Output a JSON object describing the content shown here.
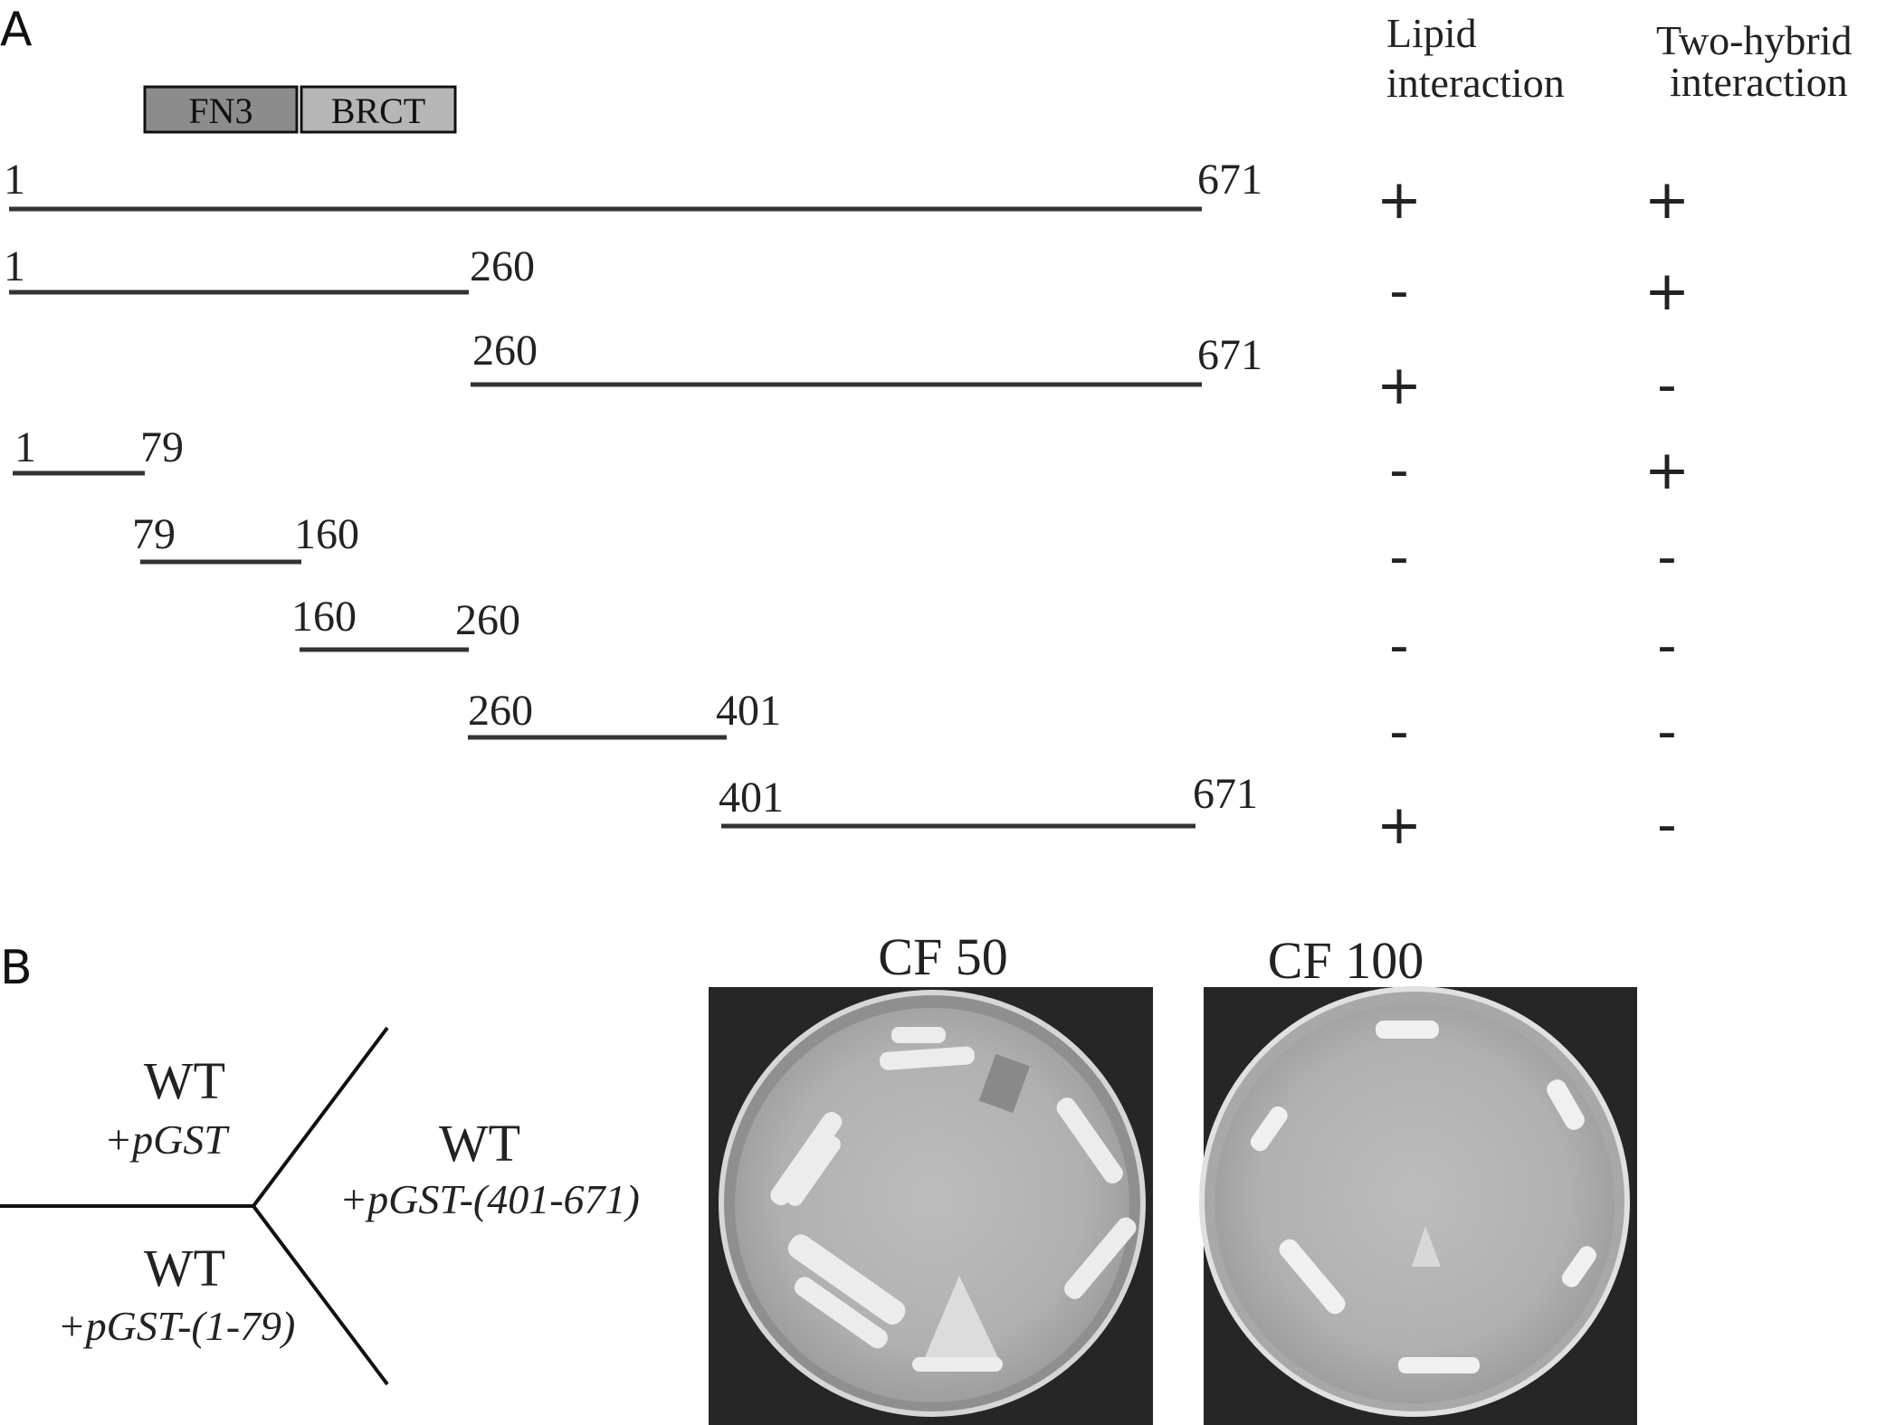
{
  "panel_a": {
    "label": "A",
    "domains": [
      {
        "name": "FN3",
        "fill": "#8c8c8c"
      },
      {
        "name": "BRCT",
        "fill": "#b6b6b6"
      }
    ],
    "column_headers": {
      "lipid": {
        "line1": "Lipid",
        "line2": "interaction"
      },
      "two_hybrid": {
        "line1": "Two-hybrid",
        "line2": "interaction"
      }
    },
    "constructs": [
      {
        "start_label": "1",
        "end_label": "671",
        "lipid": "+",
        "two_hybrid": "+"
      },
      {
        "start_label": "1",
        "end_label": "260",
        "lipid": "-",
        "two_hybrid": "+"
      },
      {
        "start_label": "260",
        "end_label": "671",
        "lipid": "+",
        "two_hybrid": "-"
      },
      {
        "start_label": "1",
        "end_label": "79",
        "lipid": "-",
        "two_hybrid": "+"
      },
      {
        "start_label": "79",
        "end_label": "160",
        "lipid": "-",
        "two_hybrid": "-"
      },
      {
        "start_label": "160",
        "end_label": "260",
        "lipid": "-",
        "two_hybrid": "-"
      },
      {
        "start_label": "260",
        "end_label": "401",
        "lipid": "-",
        "two_hybrid": "-"
      },
      {
        "start_label": "401",
        "end_label": "671",
        "lipid": "+",
        "two_hybrid": "-"
      }
    ]
  },
  "panel_b": {
    "label": "B",
    "sectors": {
      "top_left": {
        "strain": "WT",
        "plasmid": "+pGST"
      },
      "right": {
        "strain": "WT",
        "plasmid": "+pGST-(401-671)"
      },
      "bottom_left": {
        "strain": "WT",
        "plasmid": "+pGST-(1-79)"
      }
    },
    "plates": [
      {
        "title": "CF 50"
      },
      {
        "title": "CF 100"
      }
    ]
  }
}
